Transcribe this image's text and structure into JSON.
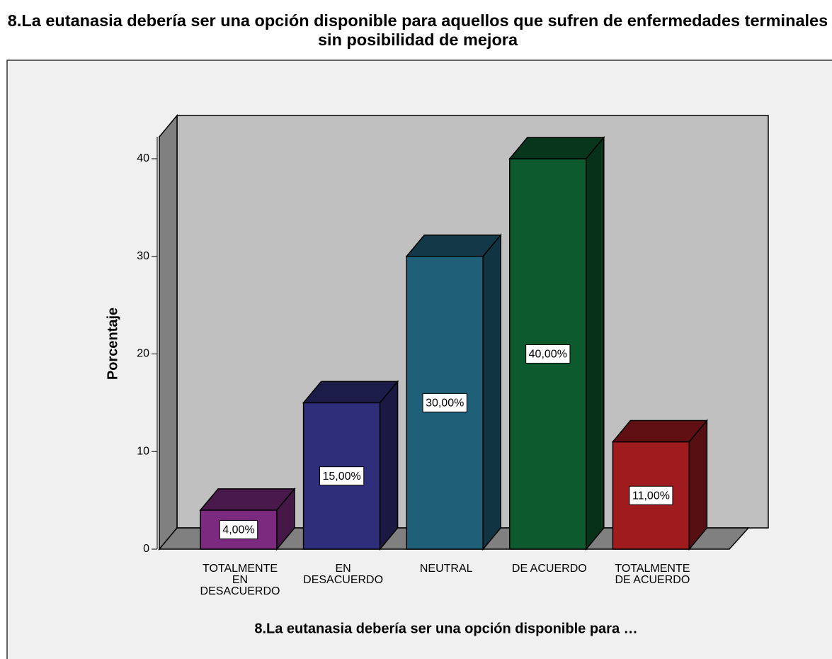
{
  "chart_data": {
    "type": "bar3d",
    "title": "8.La eutanasia debería ser una opción disponible para aquellos que sufren de enfermedades terminales sin posibilidad de mejora",
    "x_label": "8.La eutanasia debería ser una opción disponible para …",
    "y_label": "Porcentaje",
    "categories": [
      "TOTALMENTE EN DESACUERDO",
      "EN DESACUERDO",
      "NEUTRAL",
      "DE ACUERDO",
      "TOTALMENTE DE ACUERDO"
    ],
    "values": [
      4,
      15,
      30,
      40,
      11
    ],
    "value_labels": [
      "4,00%",
      "15,00%",
      "30,00%",
      "40,00%",
      "11,00%"
    ],
    "colors": [
      "#7b2a7f",
      "#2e2e7a",
      "#1f5f78",
      "#0c5a2e",
      "#a01b1e"
    ],
    "ylim": [
      0,
      42.25
    ],
    "yticks": [
      0,
      10,
      20,
      30,
      40
    ],
    "grid": false
  }
}
